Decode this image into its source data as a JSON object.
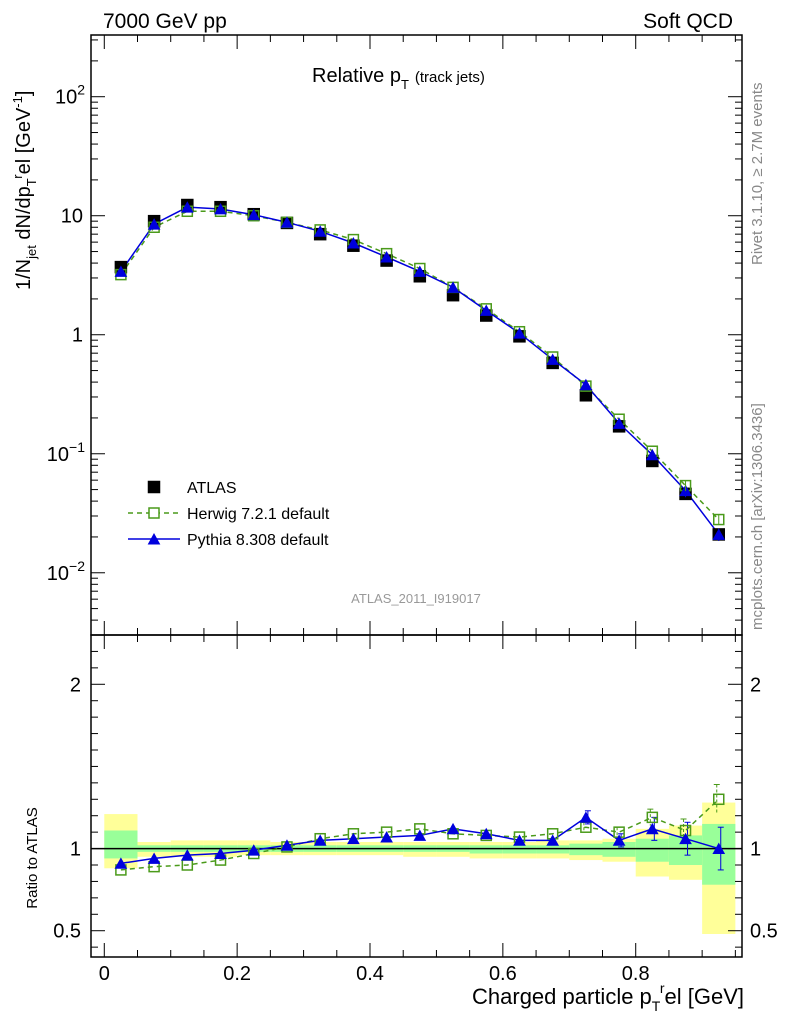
{
  "header": {
    "left": "7000 GeV pp",
    "right": "Soft QCD"
  },
  "main_title": "Relative p",
  "main_title_sub": "T",
  "main_title_suffix": "(track jets)",
  "watermark": "ATLAS_2011_I919017",
  "side_label_top": "Rivet 3.1.10, ≥ 2.7M events",
  "side_label_bottom": "mcplots.cern.ch [arXiv:1306.3436]",
  "y_axis_main": "1/N",
  "y_axis_ratio": "Ratio to ATLAS",
  "x_axis": "Charged particle p",
  "x_axis_suffix": "el [GeV]",
  "colors": {
    "atlas": "#000000",
    "herwig": "#4a9a1a",
    "pythia": "#0000dd",
    "band_outer": "#ffff99",
    "band_inner": "#99ff99"
  },
  "chart_data": [
    {
      "type": "scatter",
      "yscale": "log",
      "xlim": [
        -0.02,
        0.96
      ],
      "ylim": [
        0.003,
        330
      ],
      "x": [
        0.025,
        0.075,
        0.125,
        0.175,
        0.225,
        0.275,
        0.325,
        0.375,
        0.425,
        0.475,
        0.525,
        0.575,
        0.625,
        0.675,
        0.725,
        0.775,
        0.825,
        0.875,
        0.925
      ],
      "series": [
        {
          "name": "ATLAS",
          "values": [
            3.7,
            9.0,
            12.3,
            11.8,
            10.3,
            8.7,
            7.0,
            5.6,
            4.2,
            3.1,
            2.15,
            1.45,
            0.97,
            0.58,
            0.31,
            0.17,
            0.087,
            0.046,
            0.021
          ]
        },
        {
          "name": "Herwig 7.2.1 default",
          "values": [
            3.2,
            8.0,
            10.9,
            10.9,
            10.0,
            8.8,
            7.6,
            6.3,
            4.8,
            3.6,
            2.5,
            1.65,
            1.06,
            0.65,
            0.37,
            0.195,
            0.105,
            0.054,
            0.028
          ]
        },
        {
          "name": "Pythia 8.308 default",
          "values": [
            3.4,
            8.5,
            11.8,
            11.4,
            10.2,
            8.8,
            7.4,
            5.9,
            4.5,
            3.4,
            2.5,
            1.6,
            1.03,
            0.62,
            0.38,
            0.18,
            0.098,
            0.049,
            0.021
          ]
        }
      ],
      "yticks": [
        {
          "value": 0.01,
          "base": "10",
          "exp": "−2"
        },
        {
          "value": 0.1,
          "base": "10",
          "exp": "−1"
        },
        {
          "value": 1,
          "base": "1",
          "exp": ""
        },
        {
          "value": 10,
          "base": "10",
          "exp": ""
        },
        {
          "value": 100,
          "base": "10",
          "exp": "2"
        }
      ]
    },
    {
      "type": "scatter",
      "xlim": [
        -0.02,
        0.96
      ],
      "ylim": [
        0.34,
        2.3
      ],
      "x": [
        0.025,
        0.075,
        0.125,
        0.175,
        0.225,
        0.275,
        0.325,
        0.375,
        0.425,
        0.475,
        0.525,
        0.575,
        0.625,
        0.675,
        0.725,
        0.775,
        0.825,
        0.875,
        0.925
      ],
      "series": [
        {
          "name": "Herwig 7.2.1 default",
          "values": [
            0.87,
            0.89,
            0.9,
            0.93,
            0.97,
            1.01,
            1.06,
            1.09,
            1.1,
            1.12,
            1.09,
            1.08,
            1.07,
            1.09,
            1.13,
            1.1,
            1.19,
            1.11,
            1.3
          ]
        },
        {
          "name": "Pythia 8.308 default",
          "values": [
            0.91,
            0.94,
            0.96,
            0.97,
            0.99,
            1.02,
            1.05,
            1.06,
            1.07,
            1.08,
            1.12,
            1.09,
            1.05,
            1.05,
            1.19,
            1.05,
            1.12,
            1.06,
            1.0
          ]
        }
      ],
      "herwig_err": [
        0,
        0,
        0,
        0,
        0,
        0,
        0,
        0,
        0,
        0,
        0,
        0,
        0,
        0,
        0.03,
        0.03,
        0.05,
        0.07,
        0.09
      ],
      "pythia_err": [
        0,
        0,
        0,
        0,
        0,
        0,
        0,
        0,
        0,
        0,
        0,
        0,
        0,
        0,
        0.04,
        0.04,
        0.07,
        0.1,
        0.13
      ],
      "band_outer": [
        [
          0.88,
          1.21
        ],
        [
          0.95,
          1.04
        ],
        [
          0.95,
          1.05
        ],
        [
          0.95,
          1.05
        ],
        [
          0.96,
          1.05
        ],
        [
          0.96,
          1.04
        ],
        [
          0.96,
          1.04
        ],
        [
          0.96,
          1.04
        ],
        [
          0.96,
          1.04
        ],
        [
          0.95,
          1.04
        ],
        [
          0.95,
          1.04
        ],
        [
          0.94,
          1.04
        ],
        [
          0.94,
          1.04
        ],
        [
          0.94,
          1.05
        ],
        [
          0.93,
          1.05
        ],
        [
          0.92,
          1.06
        ],
        [
          0.83,
          1.12
        ],
        [
          0.81,
          1.14
        ],
        [
          0.48,
          1.28
        ]
      ],
      "band_inner": [
        [
          0.94,
          1.11
        ],
        [
          0.98,
          1.02
        ],
        [
          0.98,
          1.02
        ],
        [
          0.98,
          1.02
        ],
        [
          0.98,
          1.02
        ],
        [
          0.98,
          1.02
        ],
        [
          0.98,
          1.02
        ],
        [
          0.98,
          1.02
        ],
        [
          0.98,
          1.02
        ],
        [
          0.98,
          1.02
        ],
        [
          0.98,
          1.02
        ],
        [
          0.97,
          1.02
        ],
        [
          0.97,
          1.02
        ],
        [
          0.97,
          1.02
        ],
        [
          0.96,
          1.03
        ],
        [
          0.95,
          1.04
        ],
        [
          0.92,
          1.06
        ],
        [
          0.9,
          1.08
        ],
        [
          0.78,
          1.15
        ]
      ],
      "yticks": [
        0.5,
        1,
        2
      ],
      "xticks": [
        0,
        0.2,
        0.4,
        0.6,
        0.8
      ]
    }
  ],
  "legend": [
    {
      "label": "ATLAS"
    },
    {
      "label": "Herwig 7.2.1 default"
    },
    {
      "label": "Pythia 8.308 default"
    }
  ]
}
